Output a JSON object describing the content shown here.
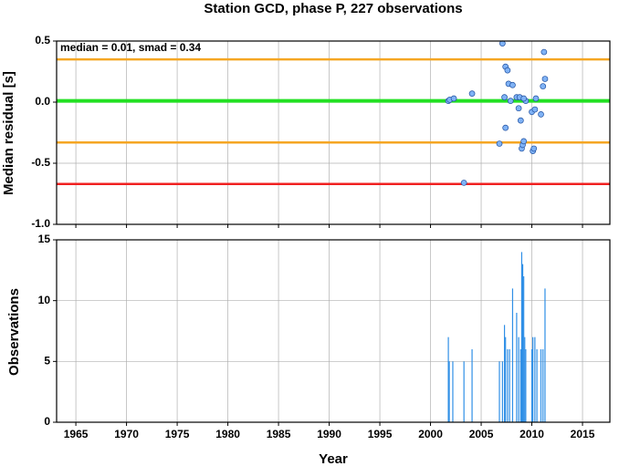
{
  "chart_data": [
    {
      "type": "scatter",
      "title": "Station GCD, phase P, 227 observations",
      "annotation": "median = 0.01, smad = 0.34",
      "y_label": "Median residual [s]",
      "color": "#7fb2f5",
      "x": [
        2001.76,
        2001.9,
        2002.3,
        2003.3,
        2004.1,
        2006.8,
        2007.1,
        2007.4,
        2007.6,
        2007.3,
        2007.4,
        2007.7,
        2007.9,
        2008.1,
        2008.5,
        2008.8,
        2008.7,
        2008.9,
        2009.0,
        2009.1,
        2009.2,
        2009.4,
        2009.2,
        2010.0,
        2010.3,
        2010.1,
        2010.2,
        2010.4,
        2010.9,
        2011.1,
        2011.2,
        2011.3
      ],
      "values": [
        0.01,
        0.02,
        0.03,
        -0.66,
        0.07,
        -0.34,
        0.48,
        0.29,
        0.26,
        0.04,
        -0.21,
        0.15,
        0.01,
        0.14,
        0.04,
        0.04,
        -0.05,
        -0.15,
        -0.38,
        -0.35,
        -0.32,
        0.01,
        0.03,
        -0.08,
        -0.06,
        -0.4,
        -0.38,
        0.03,
        -0.1,
        0.13,
        0.41,
        0.19
      ],
      "hlines": [
        {
          "value": 0.35,
          "color": "#f5a623"
        },
        {
          "value": 0.01,
          "color": "#22e022"
        },
        {
          "value": -0.33,
          "color": "#f5a623"
        },
        {
          "value": -0.67,
          "color": "#f02020"
        }
      ],
      "xlim": [
        1963.1,
        2017.7
      ],
      "xticks": [
        1965,
        1970,
        1975,
        1980,
        1985,
        1990,
        1995,
        2000,
        2005,
        2010,
        2015
      ],
      "ylim": [
        -1.0,
        0.5
      ],
      "yticks": [
        {
          "value": -1.0,
          "label": "-1.0"
        },
        -0.5,
        {
          "value": 0.0,
          "label": "0.0"
        },
        0.5
      ],
      "grid": true
    },
    {
      "type": "bar",
      "y_label": "Observations",
      "x_label": "Year",
      "color": "#2f8fe6",
      "x": [
        2001.76,
        2001.85,
        2002.2,
        2003.3,
        2004.1,
        2006.8,
        2007.1,
        2007.3,
        2007.4,
        2007.6,
        2007.8,
        2008.1,
        2008.5,
        2008.7,
        2008.9,
        2009.0,
        2009.1,
        2009.2,
        2009.3,
        2009.4,
        2010.0,
        2010.1,
        2010.3,
        2010.5,
        2010.9,
        2011.1,
        2011.3
      ],
      "values": [
        7,
        5,
        5,
        5,
        6,
        5,
        5,
        8,
        7,
        6,
        6,
        11,
        9,
        7,
        6,
        14,
        13,
        12,
        7,
        6,
        6,
        7,
        7,
        6,
        6,
        6,
        11
      ],
      "xlim": [
        1963.1,
        2017.7
      ],
      "xticks": [
        1965,
        1970,
        1975,
        1980,
        1985,
        1990,
        1995,
        2000,
        2005,
        2010,
        2015
      ],
      "ylim": [
        0,
        15
      ],
      "yticks": [
        0,
        5,
        10,
        15
      ],
      "grid": true
    }
  ]
}
